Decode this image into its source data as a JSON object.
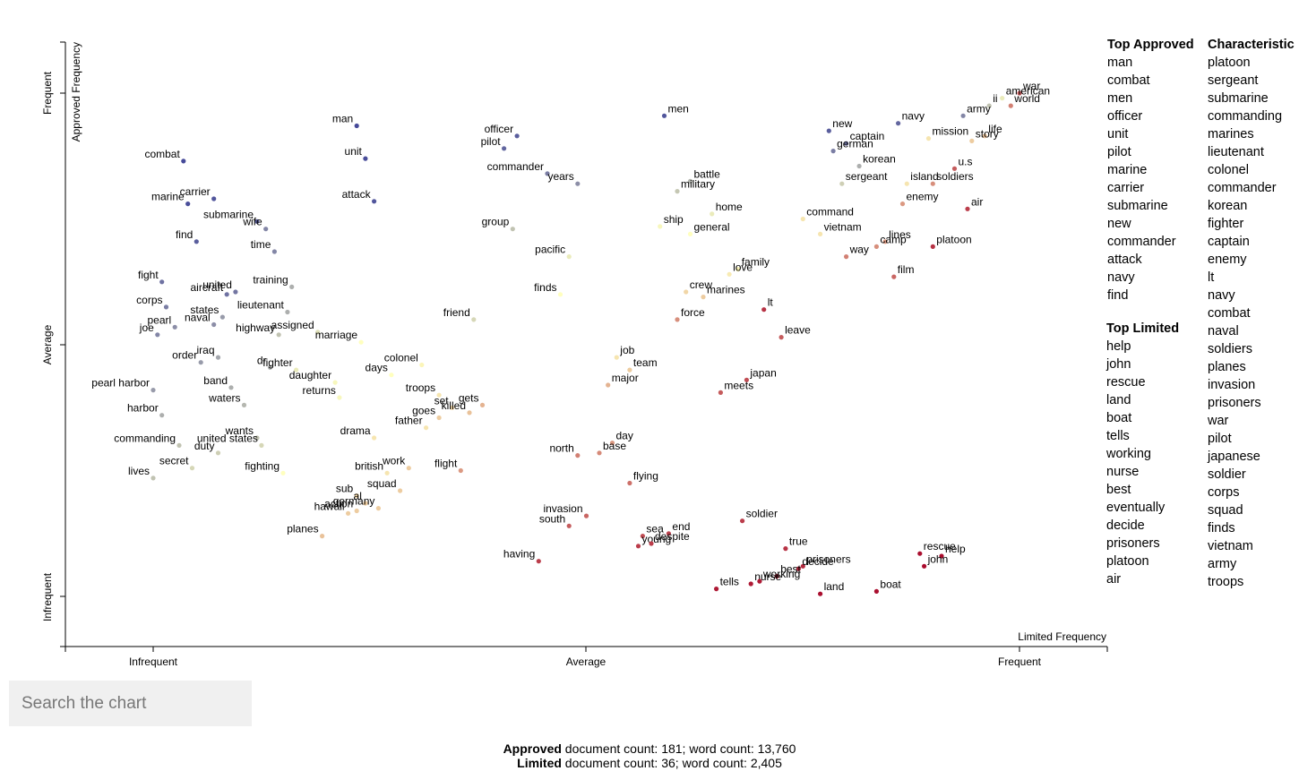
{
  "chart_data": {
    "type": "scatter",
    "title": "",
    "xlabel": "Limited Frequency",
    "ylabel": "Approved Frequency",
    "x_ticks": [
      "Infrequent",
      "Average",
      "Frequent"
    ],
    "y_ticks": [
      "Infrequent",
      "Average",
      "Frequent"
    ],
    "x_range": [
      0,
      1
    ],
    "y_range": [
      0,
      1
    ],
    "color_scale": {
      "low": "#313695",
      "mid": "#ffffbf",
      "high": "#a50026"
    },
    "points": [
      {
        "term": "war",
        "x": 1.0,
        "y": 1.0,
        "c": 0.82
      },
      {
        "term": "american",
        "x": 0.98,
        "y": 0.99,
        "c": 0.45
      },
      {
        "term": "world",
        "x": 0.99,
        "y": 0.975,
        "c": 0.75
      },
      {
        "term": "ii",
        "x": 0.965,
        "y": 0.975,
        "c": 0.35
      },
      {
        "term": "army",
        "x": 0.935,
        "y": 0.955,
        "c": 0.2
      },
      {
        "term": "navy",
        "x": 0.86,
        "y": 0.94,
        "c": 0.12
      },
      {
        "term": "new",
        "x": 0.78,
        "y": 0.925,
        "c": 0.1
      },
      {
        "term": "captain",
        "x": 0.8,
        "y": 0.9,
        "c": 0.15
      },
      {
        "term": "german",
        "x": 0.785,
        "y": 0.885,
        "c": 0.18
      },
      {
        "term": "mission",
        "x": 0.895,
        "y": 0.91,
        "c": 0.55
      },
      {
        "term": "life",
        "x": 0.96,
        "y": 0.915,
        "c": 0.62
      },
      {
        "term": "story",
        "x": 0.945,
        "y": 0.905,
        "c": 0.6
      },
      {
        "term": "korean",
        "x": 0.815,
        "y": 0.855,
        "c": 0.3
      },
      {
        "term": "u.s",
        "x": 0.925,
        "y": 0.85,
        "c": 0.82
      },
      {
        "term": "sergeant",
        "x": 0.795,
        "y": 0.82,
        "c": 0.38
      },
      {
        "term": "island",
        "x": 0.87,
        "y": 0.82,
        "c": 0.55
      },
      {
        "term": "soldiers",
        "x": 0.9,
        "y": 0.82,
        "c": 0.72
      },
      {
        "term": "enemy",
        "x": 0.865,
        "y": 0.78,
        "c": 0.7
      },
      {
        "term": "air",
        "x": 0.94,
        "y": 0.77,
        "c": 0.88
      },
      {
        "term": "platoon",
        "x": 0.9,
        "y": 0.695,
        "c": 0.9
      },
      {
        "term": "command",
        "x": 0.75,
        "y": 0.75,
        "c": 0.55
      },
      {
        "term": "vietnam",
        "x": 0.77,
        "y": 0.72,
        "c": 0.55
      },
      {
        "term": "lines",
        "x": 0.845,
        "y": 0.705,
        "c": 0.7
      },
      {
        "term": "camp",
        "x": 0.835,
        "y": 0.695,
        "c": 0.72
      },
      {
        "term": "way",
        "x": 0.8,
        "y": 0.675,
        "c": 0.75
      },
      {
        "term": "film",
        "x": 0.855,
        "y": 0.635,
        "c": 0.8
      },
      {
        "term": "men",
        "x": 0.59,
        "y": 0.955,
        "c": 0.08
      },
      {
        "term": "battle",
        "x": 0.62,
        "y": 0.825,
        "c": 0.32
      },
      {
        "term": "military",
        "x": 0.605,
        "y": 0.805,
        "c": 0.36
      },
      {
        "term": "home",
        "x": 0.645,
        "y": 0.76,
        "c": 0.45
      },
      {
        "term": "ship",
        "x": 0.585,
        "y": 0.735,
        "c": 0.48
      },
      {
        "term": "general",
        "x": 0.62,
        "y": 0.72,
        "c": 0.5
      },
      {
        "term": "family",
        "x": 0.675,
        "y": 0.65,
        "c": 0.52
      },
      {
        "term": "love",
        "x": 0.665,
        "y": 0.64,
        "c": 0.54
      },
      {
        "term": "crew",
        "x": 0.615,
        "y": 0.605,
        "c": 0.58
      },
      {
        "term": "marines",
        "x": 0.635,
        "y": 0.595,
        "c": 0.6
      },
      {
        "term": "lt",
        "x": 0.705,
        "y": 0.57,
        "c": 0.9
      },
      {
        "term": "force",
        "x": 0.605,
        "y": 0.55,
        "c": 0.72
      },
      {
        "term": "leave",
        "x": 0.725,
        "y": 0.515,
        "c": 0.82
      },
      {
        "term": "japan",
        "x": 0.685,
        "y": 0.43,
        "c": 0.85
      },
      {
        "term": "meets",
        "x": 0.655,
        "y": 0.405,
        "c": 0.82
      },
      {
        "term": "officer",
        "x": 0.42,
        "y": 0.915,
        "c": 0.1
      },
      {
        "term": "pilot",
        "x": 0.405,
        "y": 0.89,
        "c": 0.12
      },
      {
        "term": "commander",
        "x": 0.455,
        "y": 0.84,
        "c": 0.18
      },
      {
        "term": "years",
        "x": 0.49,
        "y": 0.82,
        "c": 0.22
      },
      {
        "term": "group",
        "x": 0.415,
        "y": 0.73,
        "c": 0.35
      },
      {
        "term": "pacific",
        "x": 0.48,
        "y": 0.675,
        "c": 0.45
      },
      {
        "term": "finds",
        "x": 0.47,
        "y": 0.6,
        "c": 0.5
      },
      {
        "term": "friend",
        "x": 0.37,
        "y": 0.55,
        "c": 0.4
      },
      {
        "term": "job",
        "x": 0.535,
        "y": 0.475,
        "c": 0.55
      },
      {
        "term": "team",
        "x": 0.55,
        "y": 0.45,
        "c": 0.6
      },
      {
        "term": "major",
        "x": 0.525,
        "y": 0.42,
        "c": 0.65
      },
      {
        "term": "day",
        "x": 0.53,
        "y": 0.305,
        "c": 0.7
      },
      {
        "term": "north",
        "x": 0.49,
        "y": 0.28,
        "c": 0.75
      },
      {
        "term": "base",
        "x": 0.515,
        "y": 0.285,
        "c": 0.73
      },
      {
        "term": "flying",
        "x": 0.55,
        "y": 0.225,
        "c": 0.78
      },
      {
        "term": "invasion",
        "x": 0.5,
        "y": 0.16,
        "c": 0.8
      },
      {
        "term": "south",
        "x": 0.48,
        "y": 0.14,
        "c": 0.82
      },
      {
        "term": "sea",
        "x": 0.565,
        "y": 0.12,
        "c": 0.85
      },
      {
        "term": "end",
        "x": 0.595,
        "y": 0.125,
        "c": 0.87
      },
      {
        "term": "young",
        "x": 0.56,
        "y": 0.1,
        "c": 0.88
      },
      {
        "term": "despite",
        "x": 0.575,
        "y": 0.105,
        "c": 0.88
      },
      {
        "term": "having",
        "x": 0.445,
        "y": 0.07,
        "c": 0.88
      },
      {
        "term": "soldier",
        "x": 0.68,
        "y": 0.15,
        "c": 0.88
      },
      {
        "term": "true",
        "x": 0.73,
        "y": 0.095,
        "c": 0.9
      },
      {
        "term": "prisoners",
        "x": 0.75,
        "y": 0.06,
        "c": 0.92
      },
      {
        "term": "decide",
        "x": 0.745,
        "y": 0.055,
        "c": 0.93
      },
      {
        "term": "best",
        "x": 0.72,
        "y": 0.04,
        "c": 0.93
      },
      {
        "term": "nurse",
        "x": 0.69,
        "y": 0.025,
        "c": 0.95
      },
      {
        "term": "working",
        "x": 0.7,
        "y": 0.03,
        "c": 0.95
      },
      {
        "term": "tells",
        "x": 0.65,
        "y": 0.015,
        "c": 0.95
      },
      {
        "term": "land",
        "x": 0.77,
        "y": 0.005,
        "c": 0.97
      },
      {
        "term": "boat",
        "x": 0.835,
        "y": 0.01,
        "c": 0.97
      },
      {
        "term": "rescue",
        "x": 0.885,
        "y": 0.085,
        "c": 0.97
      },
      {
        "term": "help",
        "x": 0.91,
        "y": 0.08,
        "c": 0.98
      },
      {
        "term": "john",
        "x": 0.89,
        "y": 0.06,
        "c": 0.98
      },
      {
        "term": "man",
        "x": 0.235,
        "y": 0.935,
        "c": 0.05
      },
      {
        "term": "unit",
        "x": 0.245,
        "y": 0.87,
        "c": 0.06
      },
      {
        "term": "attack",
        "x": 0.255,
        "y": 0.785,
        "c": 0.08
      },
      {
        "term": "combat",
        "x": 0.035,
        "y": 0.865,
        "c": 0.05
      },
      {
        "term": "carrier",
        "x": 0.07,
        "y": 0.79,
        "c": 0.08
      },
      {
        "term": "marine",
        "x": 0.04,
        "y": 0.78,
        "c": 0.06
      },
      {
        "term": "submarine",
        "x": 0.12,
        "y": 0.745,
        "c": 0.1
      },
      {
        "term": "wife",
        "x": 0.13,
        "y": 0.73,
        "c": 0.2
      },
      {
        "term": "find",
        "x": 0.05,
        "y": 0.705,
        "c": 0.1
      },
      {
        "term": "time",
        "x": 0.14,
        "y": 0.685,
        "c": 0.2
      },
      {
        "term": "fight",
        "x": 0.01,
        "y": 0.625,
        "c": 0.15
      },
      {
        "term": "united",
        "x": 0.095,
        "y": 0.605,
        "c": 0.16
      },
      {
        "term": "aircraft",
        "x": 0.085,
        "y": 0.6,
        "c": 0.15
      },
      {
        "term": "training",
        "x": 0.16,
        "y": 0.615,
        "c": 0.3
      },
      {
        "term": "corps",
        "x": 0.015,
        "y": 0.575,
        "c": 0.18
      },
      {
        "term": "lieutenant",
        "x": 0.155,
        "y": 0.565,
        "c": 0.3
      },
      {
        "term": "naval",
        "x": 0.07,
        "y": 0.54,
        "c": 0.22
      },
      {
        "term": "states",
        "x": 0.08,
        "y": 0.555,
        "c": 0.25
      },
      {
        "term": "highway",
        "x": 0.145,
        "y": 0.52,
        "c": 0.35
      },
      {
        "term": "assigned",
        "x": 0.19,
        "y": 0.525,
        "c": 0.42
      },
      {
        "term": "marriage",
        "x": 0.24,
        "y": 0.505,
        "c": 0.5
      },
      {
        "term": "joe",
        "x": 0.005,
        "y": 0.52,
        "c": 0.2
      },
      {
        "term": "pearl",
        "x": 0.025,
        "y": 0.535,
        "c": 0.22
      },
      {
        "term": "order",
        "x": 0.055,
        "y": 0.465,
        "c": 0.25
      },
      {
        "term": "iraq",
        "x": 0.075,
        "y": 0.475,
        "c": 0.28
      },
      {
        "term": "dr",
        "x": 0.135,
        "y": 0.455,
        "c": 0.3
      },
      {
        "term": "fighter",
        "x": 0.165,
        "y": 0.45,
        "c": 0.45
      },
      {
        "term": "daughter",
        "x": 0.21,
        "y": 0.425,
        "c": 0.48
      },
      {
        "term": "returns",
        "x": 0.215,
        "y": 0.395,
        "c": 0.48
      },
      {
        "term": "days",
        "x": 0.275,
        "y": 0.44,
        "c": 0.5
      },
      {
        "term": "colonel",
        "x": 0.31,
        "y": 0.46,
        "c": 0.52
      },
      {
        "term": "troops",
        "x": 0.33,
        "y": 0.4,
        "c": 0.55
      },
      {
        "term": "set",
        "x": 0.345,
        "y": 0.375,
        "c": 0.58
      },
      {
        "term": "gets",
        "x": 0.38,
        "y": 0.38,
        "c": 0.65
      },
      {
        "term": "killed",
        "x": 0.365,
        "y": 0.365,
        "c": 0.62
      },
      {
        "term": "father",
        "x": 0.315,
        "y": 0.335,
        "c": 0.55
      },
      {
        "term": "goes",
        "x": 0.33,
        "y": 0.355,
        "c": 0.6
      },
      {
        "term": "pearl harbor",
        "x": 0.0,
        "y": 0.41,
        "c": 0.25
      },
      {
        "term": "band",
        "x": 0.09,
        "y": 0.415,
        "c": 0.3
      },
      {
        "term": "waters",
        "x": 0.105,
        "y": 0.38,
        "c": 0.32
      },
      {
        "term": "harbor",
        "x": 0.01,
        "y": 0.36,
        "c": 0.3
      },
      {
        "term": "wants",
        "x": 0.12,
        "y": 0.315,
        "c": 0.35
      },
      {
        "term": "commanding",
        "x": 0.03,
        "y": 0.3,
        "c": 0.35
      },
      {
        "term": "duty",
        "x": 0.075,
        "y": 0.285,
        "c": 0.38
      },
      {
        "term": "united states",
        "x": 0.125,
        "y": 0.3,
        "c": 0.4
      },
      {
        "term": "secret",
        "x": 0.045,
        "y": 0.255,
        "c": 0.4
      },
      {
        "term": "fighting",
        "x": 0.15,
        "y": 0.245,
        "c": 0.5
      },
      {
        "term": "lives",
        "x": 0.0,
        "y": 0.235,
        "c": 0.35
      },
      {
        "term": "drama",
        "x": 0.255,
        "y": 0.315,
        "c": 0.55
      },
      {
        "term": "work",
        "x": 0.295,
        "y": 0.255,
        "c": 0.6
      },
      {
        "term": "flight",
        "x": 0.355,
        "y": 0.25,
        "c": 0.7
      },
      {
        "term": "british",
        "x": 0.27,
        "y": 0.245,
        "c": 0.55
      },
      {
        "term": "sub",
        "x": 0.235,
        "y": 0.2,
        "c": 0.58
      },
      {
        "term": "al",
        "x": 0.245,
        "y": 0.185,
        "c": 0.6
      },
      {
        "term": "squad",
        "x": 0.285,
        "y": 0.21,
        "c": 0.6
      },
      {
        "term": "germany",
        "x": 0.26,
        "y": 0.175,
        "c": 0.6
      },
      {
        "term": "hawaii",
        "x": 0.225,
        "y": 0.165,
        "c": 0.6
      },
      {
        "term": "action",
        "x": 0.235,
        "y": 0.17,
        "c": 0.6
      },
      {
        "term": "planes",
        "x": 0.195,
        "y": 0.12,
        "c": 0.62
      }
    ]
  },
  "plot": {
    "x_axis_label": "Limited Frequency",
    "y_axis_label": "Approved Frequency",
    "x_tick_labels": [
      "Infrequent",
      "Average",
      "Frequent"
    ],
    "y_tick_labels": [
      "Infrequent",
      "Average",
      "Frequent"
    ]
  },
  "lists": {
    "top_approved": {
      "header": "Top Approved",
      "items": [
        "man",
        "combat",
        "men",
        "officer",
        "unit",
        "pilot",
        "marine",
        "carrier",
        "submarine",
        "new",
        "commander",
        "attack",
        "navy",
        "find"
      ]
    },
    "top_limited": {
      "header": "Top Limited",
      "items": [
        "help",
        "john",
        "rescue",
        "land",
        "boat",
        "tells",
        "working",
        "nurse",
        "best",
        "eventually",
        "decide",
        "prisoners",
        "platoon",
        "air"
      ]
    },
    "characteristic": {
      "header": "Characteristic",
      "items": [
        "platoon",
        "sergeant",
        "submarine",
        "commanding",
        "marines",
        "lieutenant",
        "colonel",
        "commander",
        "korean",
        "fighter",
        "captain",
        "enemy",
        "lt",
        "navy",
        "combat",
        "naval",
        "soldiers",
        "planes",
        "invasion",
        "prisoners",
        "war",
        "pilot",
        "japanese",
        "soldier",
        "corps",
        "squad",
        "finds",
        "vietnam",
        "army",
        "troops"
      ]
    }
  },
  "search": {
    "placeholder": "Search the chart"
  },
  "footer": {
    "approved_label": "Approved",
    "approved_text": " document count: 181; word count: 13,760",
    "limited_label": "Limited",
    "limited_text": " document count: 36; word count: 2,405"
  }
}
